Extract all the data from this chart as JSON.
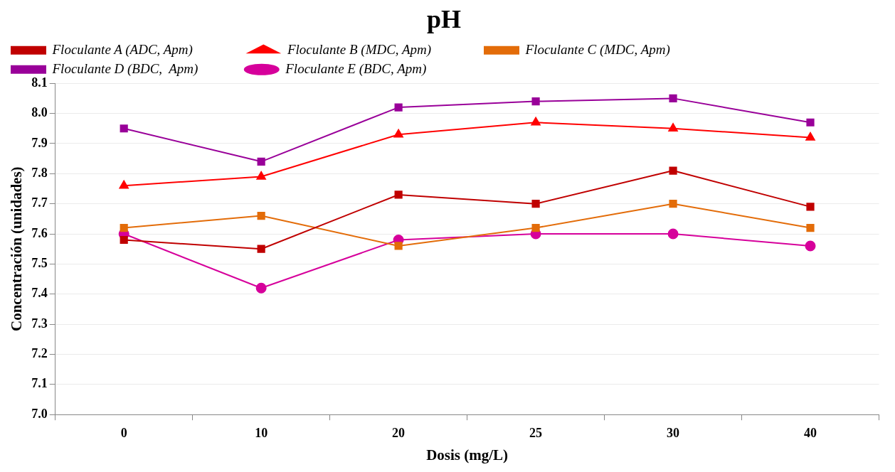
{
  "chart_data": {
    "type": "line",
    "title": "pH",
    "xlabel": "Dosis (mg/L)",
    "ylabel": "Concentración (unidades)",
    "categories": [
      "0",
      "10",
      "20",
      "25",
      "30",
      "40"
    ],
    "series": [
      {
        "name": "Floculante A (ADC, Apm)",
        "color": "#c00000",
        "marker": "square",
        "values": [
          7.58,
          7.55,
          7.73,
          7.7,
          7.81,
          7.69
        ]
      },
      {
        "name": "Floculante B (MDC, Apm)",
        "color": "#ff0000",
        "marker": "triangle",
        "values": [
          7.76,
          7.79,
          7.93,
          7.97,
          7.95,
          7.92
        ]
      },
      {
        "name": "Floculante C (MDC, Apm)",
        "color": "#e36c09",
        "marker": "square",
        "values": [
          7.62,
          7.66,
          7.56,
          7.62,
          7.7,
          7.62
        ]
      },
      {
        "name": "Floculante D (BDC,  Apm)",
        "color": "#990099",
        "marker": "square",
        "values": [
          7.95,
          7.84,
          8.02,
          8.04,
          8.05,
          7.97
        ]
      },
      {
        "name": "Floculante E (BDC, Apm)",
        "color": "#d6009b",
        "marker": "circle",
        "values": [
          7.6,
          7.42,
          7.58,
          7.6,
          7.6,
          7.56
        ]
      }
    ],
    "ylim": [
      7.0,
      8.1
    ],
    "yticks": [
      {
        "value": 7.0,
        "label": "7.0"
      },
      7.1,
      7.2,
      7.3,
      7.4,
      7.5,
      7.6,
      7.7,
      7.8,
      7.9,
      {
        "value": 8.0,
        "label": "8.0"
      },
      8.1
    ],
    "grid": "y",
    "legend": "top",
    "line_style": "solid"
  }
}
